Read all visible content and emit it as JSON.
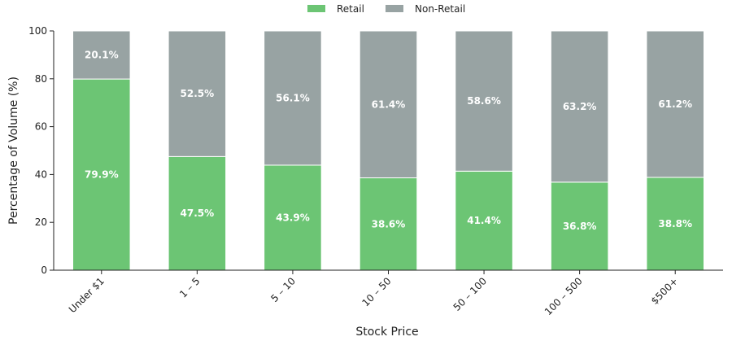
{
  "chart_data": {
    "type": "bar",
    "stacked": true,
    "title": "",
    "xlabel": "Stock Price",
    "ylabel": "Percentage of Volume (%)",
    "ylim": [
      0,
      100
    ],
    "yticks": [
      0,
      20,
      40,
      60,
      80,
      100
    ],
    "categories": [
      "Under $1",
      "1 – 5",
      "5 – 10",
      "10 – 50",
      "50 – 100",
      "100 – 500",
      "$500+"
    ],
    "series": [
      {
        "name": "Retail",
        "color": "#6cc574",
        "values": [
          79.9,
          47.5,
          43.9,
          38.6,
          41.4,
          36.8,
          38.8
        ],
        "labels": [
          "79.9%",
          "47.5%",
          "43.9%",
          "38.6%",
          "41.4%",
          "36.8%",
          "38.8%"
        ]
      },
      {
        "name": "Non-Retail",
        "color": "#98a3a3",
        "values": [
          20.1,
          52.5,
          56.1,
          61.4,
          58.6,
          63.2,
          61.2
        ],
        "labels": [
          "20.1%",
          "52.5%",
          "56.1%",
          "61.4%",
          "58.6%",
          "63.2%",
          "61.2%"
        ]
      }
    ],
    "legend": {
      "placement": "top-center"
    },
    "grid": false
  }
}
